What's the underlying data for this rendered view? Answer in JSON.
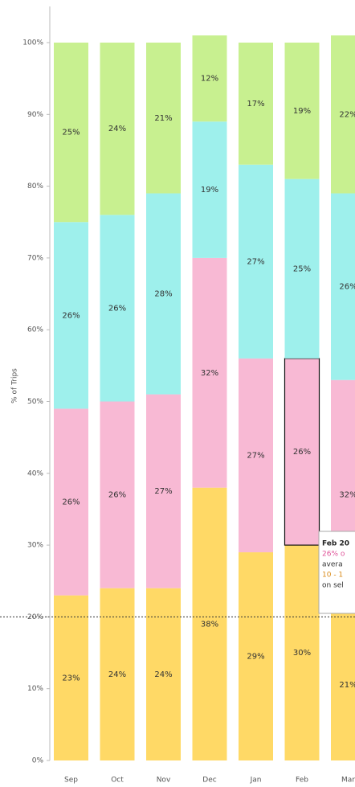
{
  "chart_data": {
    "type": "stacked_bar",
    "y_label": "% of Trips",
    "categories": [
      "Sep",
      "Oct",
      "Nov",
      "Dec",
      "Jan",
      "Feb",
      "Mar"
    ],
    "series": [
      {
        "color": "#ffd966",
        "values": [
          23,
          24,
          24,
          38,
          29,
          30,
          21
        ],
        "value_labels": [
          "23%",
          "24%",
          "24%",
          "38%",
          "29%",
          "30%",
          "21%"
        ]
      },
      {
        "color": "#f8b9d4",
        "values": [
          26,
          26,
          27,
          32,
          27,
          26,
          32
        ],
        "value_labels": [
          "26%",
          "26%",
          "27%",
          "32%",
          "27%",
          "26%",
          "32%"
        ]
      },
      {
        "color": "#9ef0ec",
        "values": [
          26,
          26,
          28,
          19,
          27,
          25,
          26
        ],
        "value_labels": [
          "26%",
          "26%",
          "28%",
          "19%",
          "27%",
          "25%",
          "26%"
        ]
      },
      {
        "color": "#c8f090",
        "values": [
          25,
          24,
          21,
          12,
          17,
          19,
          22
        ],
        "value_labels": [
          "25%",
          "24%",
          "21%",
          "12%",
          "17%",
          "19%",
          "22%"
        ]
      }
    ],
    "ylim": [
      0,
      100
    ],
    "yticks": [
      {
        "value": 0,
        "label": "0%"
      },
      {
        "value": 10,
        "label": "10%"
      },
      {
        "value": 20,
        "label": "20%"
      },
      {
        "value": 30,
        "label": "30%"
      },
      {
        "value": 40,
        "label": "40%"
      },
      {
        "value": 50,
        "label": "50%"
      },
      {
        "value": 60,
        "label": "60%"
      },
      {
        "value": 70,
        "label": "70%"
      },
      {
        "value": 80,
        "label": "80%"
      },
      {
        "value": 90,
        "label": "90%"
      },
      {
        "value": 100,
        "label": "100%"
      }
    ],
    "grid": false,
    "reference_line": 20,
    "highlight": {
      "category": "Feb",
      "series": 1
    },
    "tooltip": [
      "Feb 20",
      "26% o",
      "avera",
      "10 - 1",
      "on sel"
    ]
  }
}
